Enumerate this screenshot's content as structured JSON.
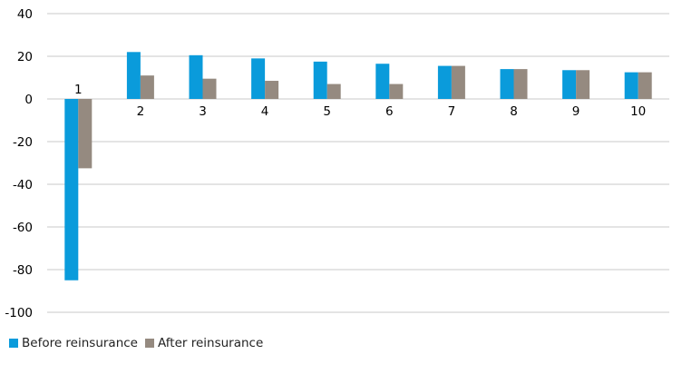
{
  "chart_data": {
    "type": "bar",
    "categories": [
      "1",
      "2",
      "3",
      "4",
      "5",
      "6",
      "7",
      "8",
      "9",
      "10"
    ],
    "series": [
      {
        "name": "Before reinsurance",
        "color": "#0a9bdb",
        "values": [
          -85,
          22,
          20.5,
          19,
          17.5,
          16.5,
          15.5,
          14,
          13.5,
          12.5
        ]
      },
      {
        "name": "After reinsurance",
        "color": "#958a80",
        "values": [
          -32.5,
          11,
          9.5,
          8.5,
          7,
          7,
          15.5,
          14,
          13.5,
          12.5
        ]
      }
    ],
    "yticks": [
      40,
      20,
      0,
      -20,
      -40,
      -60,
      -80,
      -100
    ],
    "ytick_labels": [
      "40",
      "20",
      "0",
      "-20",
      "-40",
      "-60",
      "-80",
      "-100"
    ],
    "ylim": [
      -100,
      40
    ],
    "grid": "horizontal",
    "grid_color": "#c8c8c8",
    "legend_position": "bottom-left"
  }
}
